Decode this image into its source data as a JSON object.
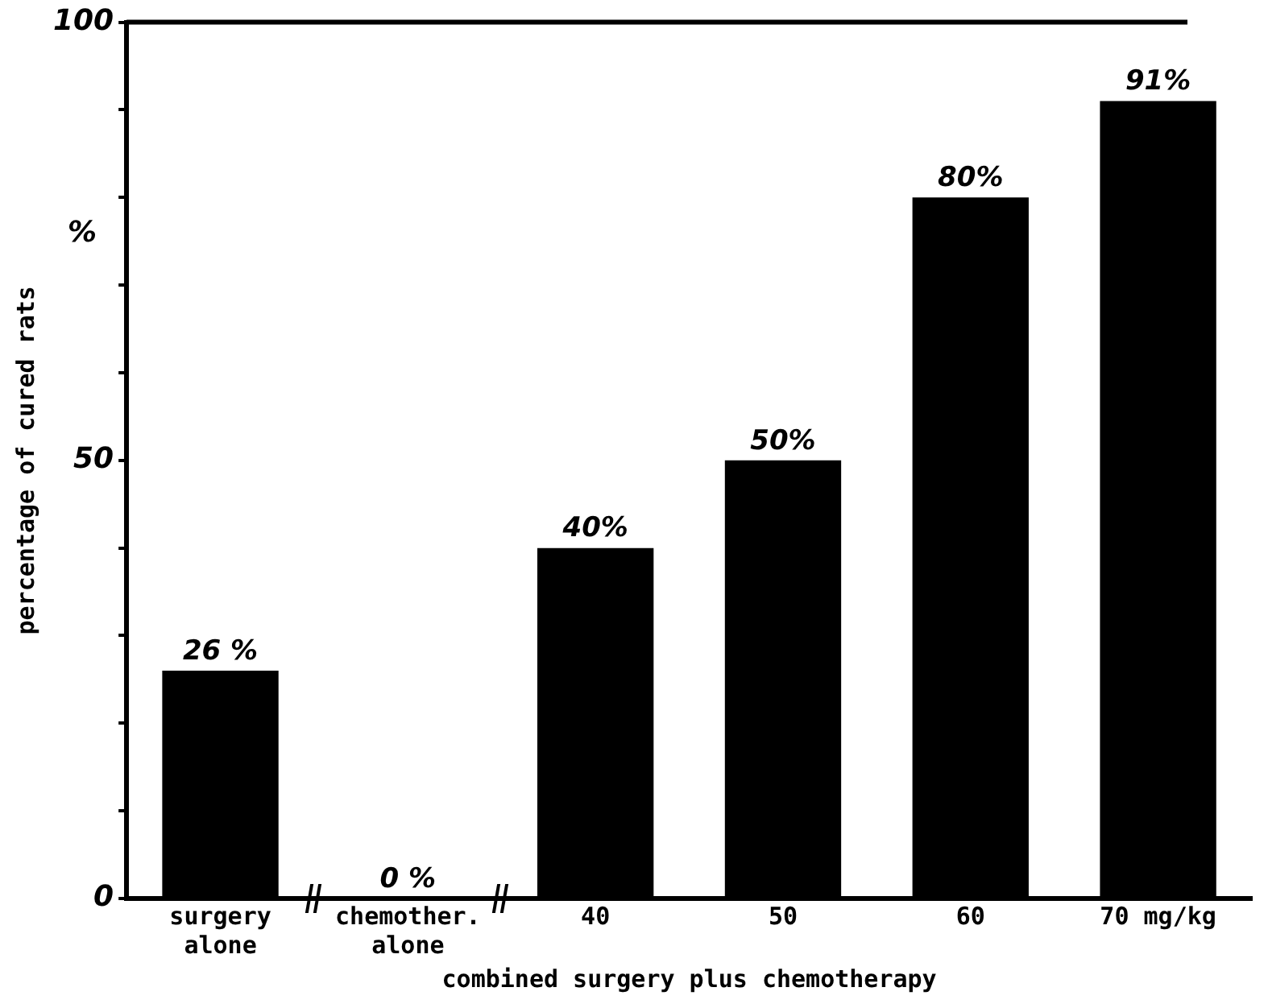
{
  "chart_data": {
    "type": "bar",
    "ylabel": "percentage of cured rats",
    "xlabel": "combined surgery plus chemotherapy",
    "categories": [
      "surgery\nalone",
      "chemother.\nalone",
      "40",
      "50",
      "60",
      "70 mg/kg"
    ],
    "values": [
      26,
      0,
      40,
      50,
      80,
      91
    ],
    "color": "#000000",
    "value_labels": [
      "26 %",
      "0 %",
      "40%",
      "50%",
      "80%",
      "91%"
    ],
    "ylim": [
      0,
      100
    ],
    "yticks": [
      0,
      {
        "value": 10,
        "label": null
      },
      {
        "value": 20,
        "label": null
      },
      {
        "value": 30,
        "label": null
      },
      {
        "value": 40,
        "label": null
      },
      50,
      {
        "value": 60,
        "label": null
      },
      {
        "value": 70,
        "label": null
      },
      {
        "value": 80,
        "label": null
      },
      {
        "value": 90,
        "label": null
      },
      100
    ],
    "annotations": [
      "%"
    ],
    "grid": false,
    "legend": false
  }
}
